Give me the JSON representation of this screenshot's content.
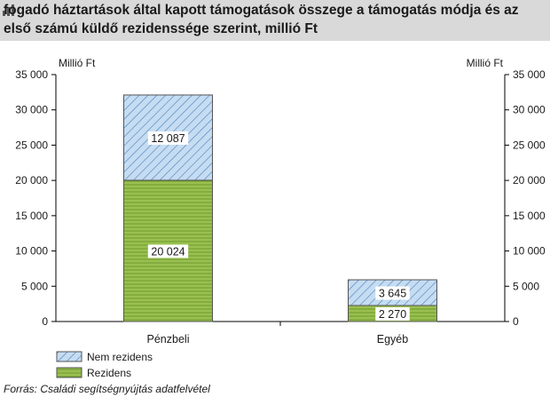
{
  "title": "Igénybe vevő/fogadó háztartások által kapott támogatások összege a támogatás módja és az első számú küldő rezidenssége szerint, millió Ft",
  "title_visible": "fogadó háztartások által kapott támogatások összege a támogatás módja és az első számú küldő rezidenssége szerint, millió Ft",
  "source": "Forrás: Családi segítségnyújtás adatfelvétel",
  "colors": {
    "rezidens": "#99c050",
    "rezidens_line": "#4f7a1f",
    "nem_rezidens": "#c5dcf2",
    "nem_rezidens_line": "#4a7fb8",
    "title_band": "#d9d9d9"
  },
  "chart_data": {
    "type": "bar",
    "stacked": true,
    "categories": [
      "Pénzbeli",
      "Egyéb"
    ],
    "series": [
      {
        "name": "Rezidens",
        "values": [
          20024,
          2270
        ],
        "labels": [
          "20 024",
          "2 270"
        ]
      },
      {
        "name": "Nem rezidens",
        "values": [
          12087,
          3645
        ],
        "labels": [
          "12 087",
          "3 645"
        ]
      }
    ],
    "ylim": [
      0,
      35000
    ],
    "yticks": [
      0,
      5000,
      10000,
      15000,
      20000,
      25000,
      30000,
      35000
    ],
    "ytick_labels": [
      "0",
      "5 000",
      "10 000",
      "15 000",
      "20 000",
      "25 000",
      "30 000",
      "35 000"
    ],
    "ylabel_left": "Millió Ft",
    "ylabel_right": "Millió Ft",
    "legend": [
      {
        "name": "Nem rezidens"
      },
      {
        "name": "Rezidens"
      }
    ],
    "legend_position": "bottom-left",
    "grid": false
  }
}
